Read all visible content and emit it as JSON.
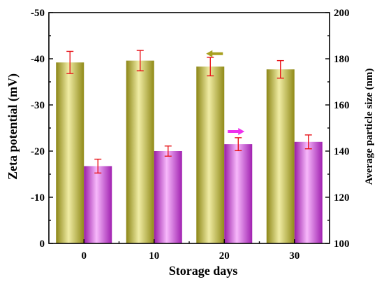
{
  "chart_data": {
    "type": "bar",
    "categories": [
      "0",
      "10",
      "20",
      "30"
    ],
    "xlabel": "Storage days",
    "series": [
      {
        "axis": "left",
        "values": [
          -39.2,
          -39.6,
          -38.3,
          -37.7
        ],
        "errors": [
          2.4,
          2.2,
          2.0,
          1.9
        ],
        "color": "#c8c03a"
      },
      {
        "axis": "right",
        "values": [
          133.5,
          140.0,
          143.0,
          144.0
        ],
        "errors": [
          3.0,
          2.2,
          2.8,
          3.0
        ],
        "color": "#cc44d8"
      }
    ],
    "left_axis": {
      "label": "Zeta potential (mV)",
      "min": 0,
      "max": -50,
      "ticks": [
        0,
        -10,
        -20,
        -30,
        -40,
        -50
      ],
      "tick_labels": [
        "0",
        "-10",
        "-20",
        "-30",
        "-40",
        "-50"
      ]
    },
    "right_axis": {
      "label": "Average particle size (nm)",
      "min": 100,
      "max": 200,
      "ticks": [
        100,
        120,
        140,
        160,
        180,
        200
      ],
      "tick_labels": [
        "100",
        "120",
        "140",
        "160",
        "180",
        "200"
      ]
    },
    "annotations": [
      {
        "type": "arrow",
        "direction": "left",
        "color": "#a8a020",
        "near_category": "20",
        "value_axis": "left",
        "value": -41.1
      },
      {
        "type": "arrow",
        "direction": "right",
        "color": "#ee30ee",
        "near_category": "20",
        "value_axis": "right",
        "value": 148.5
      }
    ],
    "grid": false,
    "legend": "none"
  }
}
